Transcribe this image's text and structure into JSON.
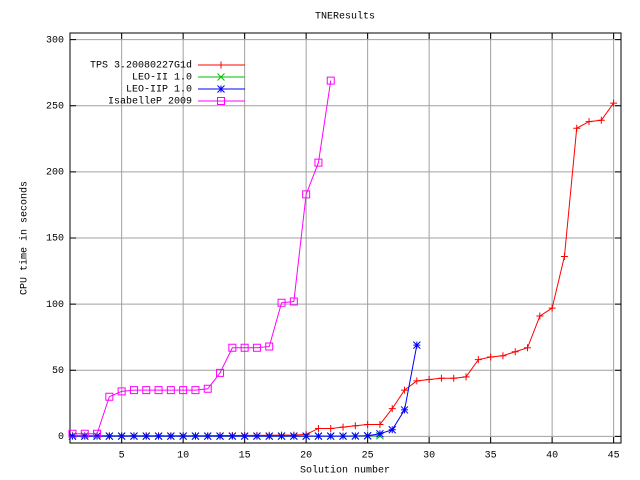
{
  "chart_data": {
    "type": "line",
    "title": "TNEResults",
    "x_label": "Solution number",
    "y_label": "CPU time in seconds",
    "xlim": [
      0.8,
      45.6
    ],
    "ylim": [
      -5,
      305
    ],
    "xticks": [
      5,
      10,
      15,
      20,
      25,
      30,
      35,
      40,
      45
    ],
    "yticks": [
      0,
      50,
      100,
      150,
      200,
      250,
      300
    ],
    "grid": true,
    "legend": "top-left",
    "series": [
      {
        "name": "TPS 3.20080227G1d",
        "color": "#ff0000",
        "marker": "plus",
        "x": [
          1,
          2,
          3,
          4,
          5,
          6,
          7,
          8,
          9,
          10,
          11,
          12,
          13,
          14,
          15,
          16,
          17,
          18,
          19,
          20,
          21,
          22,
          23,
          24,
          25,
          26,
          27,
          28,
          29,
          30,
          31,
          32,
          33,
          34,
          35,
          36,
          37,
          38,
          39,
          40,
          41,
          42,
          43,
          44,
          45
        ],
        "values": [
          0.5,
          0.5,
          0.5,
          0.5,
          0.5,
          0.5,
          0.5,
          0.5,
          0.5,
          0.5,
          0.5,
          0.5,
          0.7,
          0.7,
          0.8,
          0.8,
          0.9,
          1,
          1,
          1.5,
          6,
          6,
          7,
          8,
          9,
          9,
          21,
          35,
          42,
          43,
          44,
          44,
          45,
          58,
          60,
          61,
          64,
          67,
          91,
          97,
          136,
          233,
          238,
          239,
          252
        ]
      },
      {
        "name": "LEO-II 1.0",
        "color": "#00c000",
        "marker": "cross",
        "x": [
          1,
          2,
          3,
          4,
          5,
          6,
          7,
          8,
          9,
          10,
          11,
          12,
          13,
          14,
          15,
          16,
          17,
          18,
          19,
          20,
          21,
          22,
          23,
          24,
          25,
          26
        ],
        "values": [
          0.2,
          0.2,
          0.2,
          0.2,
          0.2,
          0.2,
          0.2,
          0.2,
          0.2,
          0.2,
          0.2,
          0.2,
          0.2,
          0.2,
          0.2,
          0.2,
          0.2,
          0.2,
          0.2,
          0.2,
          0.2,
          0.2,
          0.2,
          0.2,
          0.3,
          0.5
        ]
      },
      {
        "name": "LEO-IIP 1.0",
        "color": "#0000ff",
        "marker": "star",
        "x": [
          1,
          2,
          3,
          4,
          5,
          6,
          7,
          8,
          9,
          10,
          11,
          12,
          13,
          14,
          15,
          16,
          17,
          18,
          19,
          20,
          21,
          22,
          23,
          24,
          25,
          26,
          27,
          28,
          29
        ],
        "values": [
          0.2,
          0.2,
          0.2,
          0.2,
          0.2,
          0.2,
          0.2,
          0.2,
          0.2,
          0.2,
          0.2,
          0.2,
          0.2,
          0.2,
          0.2,
          0.2,
          0.2,
          0.2,
          0.2,
          0.2,
          0.2,
          0.2,
          0.2,
          0.3,
          0.5,
          2,
          5,
          20,
          69
        ]
      },
      {
        "name": "IsabelleP 2009",
        "color": "#ff00ff",
        "marker": "square",
        "x": [
          1,
          2,
          3,
          4,
          5,
          6,
          7,
          8,
          9,
          10,
          11,
          12,
          13,
          14,
          15,
          16,
          17,
          18,
          19,
          20,
          21,
          22
        ],
        "values": [
          2,
          2,
          2,
          30,
          34,
          35,
          35,
          35,
          35,
          35,
          35,
          36,
          48,
          67,
          67,
          67,
          68,
          101,
          102,
          183,
          207,
          269
        ]
      }
    ]
  }
}
